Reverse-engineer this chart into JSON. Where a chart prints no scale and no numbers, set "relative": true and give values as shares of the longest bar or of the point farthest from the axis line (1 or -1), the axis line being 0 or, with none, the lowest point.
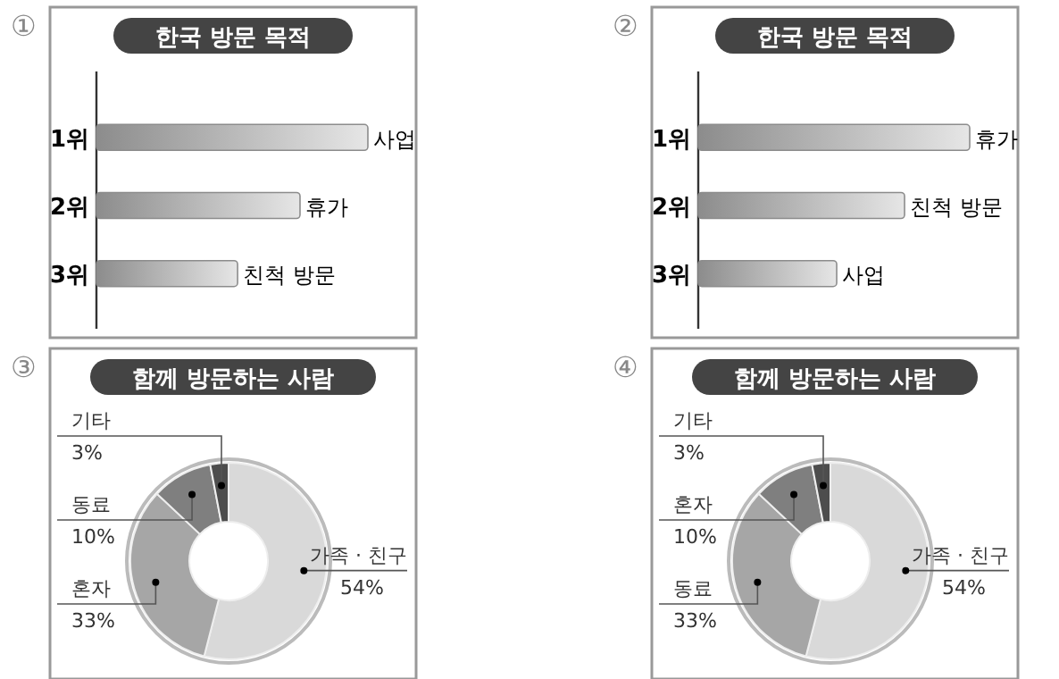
{
  "chart_data": [
    {
      "type": "bar",
      "orientation": "horizontal",
      "relative": true,
      "title": "한국 방문 목적",
      "categories": [
        "1위",
        "2위",
        "3위"
      ],
      "values": [
        1,
        0.75,
        0.52
      ],
      "color": "#8c8c8c",
      "annotations": [
        "①",
        {
          "text": "사업",
          "x": 1,
          "y": "1위"
        },
        {
          "text": "휴가",
          "x": 0.75,
          "y": "2위"
        },
        {
          "text": "친척 방문",
          "x": 0.52,
          "y": "3위"
        }
      ]
    },
    {
      "type": "bar",
      "orientation": "horizontal",
      "relative": true,
      "title": "한국 방문 목적",
      "categories": [
        "1위",
        "2위",
        "3위"
      ],
      "values": [
        1,
        0.76,
        0.51
      ],
      "color": "#8c8c8c",
      "annotations": [
        "②",
        {
          "text": "휴가",
          "x": 1,
          "y": "1위"
        },
        {
          "text": "친척 방문",
          "x": 0.76,
          "y": "2위"
        },
        {
          "text": "사업",
          "x": 0.51,
          "y": "3위"
        }
      ]
    },
    {
      "type": "donut",
      "title": "함께 방문하는 사람",
      "categories": [
        "가족 · 친구",
        "혼자",
        "동료",
        "기타"
      ],
      "values": [
        54,
        33,
        10,
        3
      ],
      "colors": [
        "#d9d9d9",
        "#a6a6a6",
        "#7f7f7f",
        "#4d4d4d"
      ],
      "value_labels": [
        "54%",
        "33%",
        "10%",
        "3%"
      ],
      "annotations": [
        "③"
      ]
    },
    {
      "type": "donut",
      "title": "함께 방문하는 사람",
      "categories": [
        "가족 · 친구",
        "동료",
        "혼자",
        "기타"
      ],
      "values": [
        54,
        33,
        10,
        3
      ],
      "colors": [
        "#d9d9d9",
        "#a6a6a6",
        "#7f7f7f",
        "#4d4d4d"
      ],
      "value_labels": [
        "54%",
        "33%",
        "10%",
        "3%"
      ],
      "annotations": [
        "④"
      ]
    }
  ]
}
